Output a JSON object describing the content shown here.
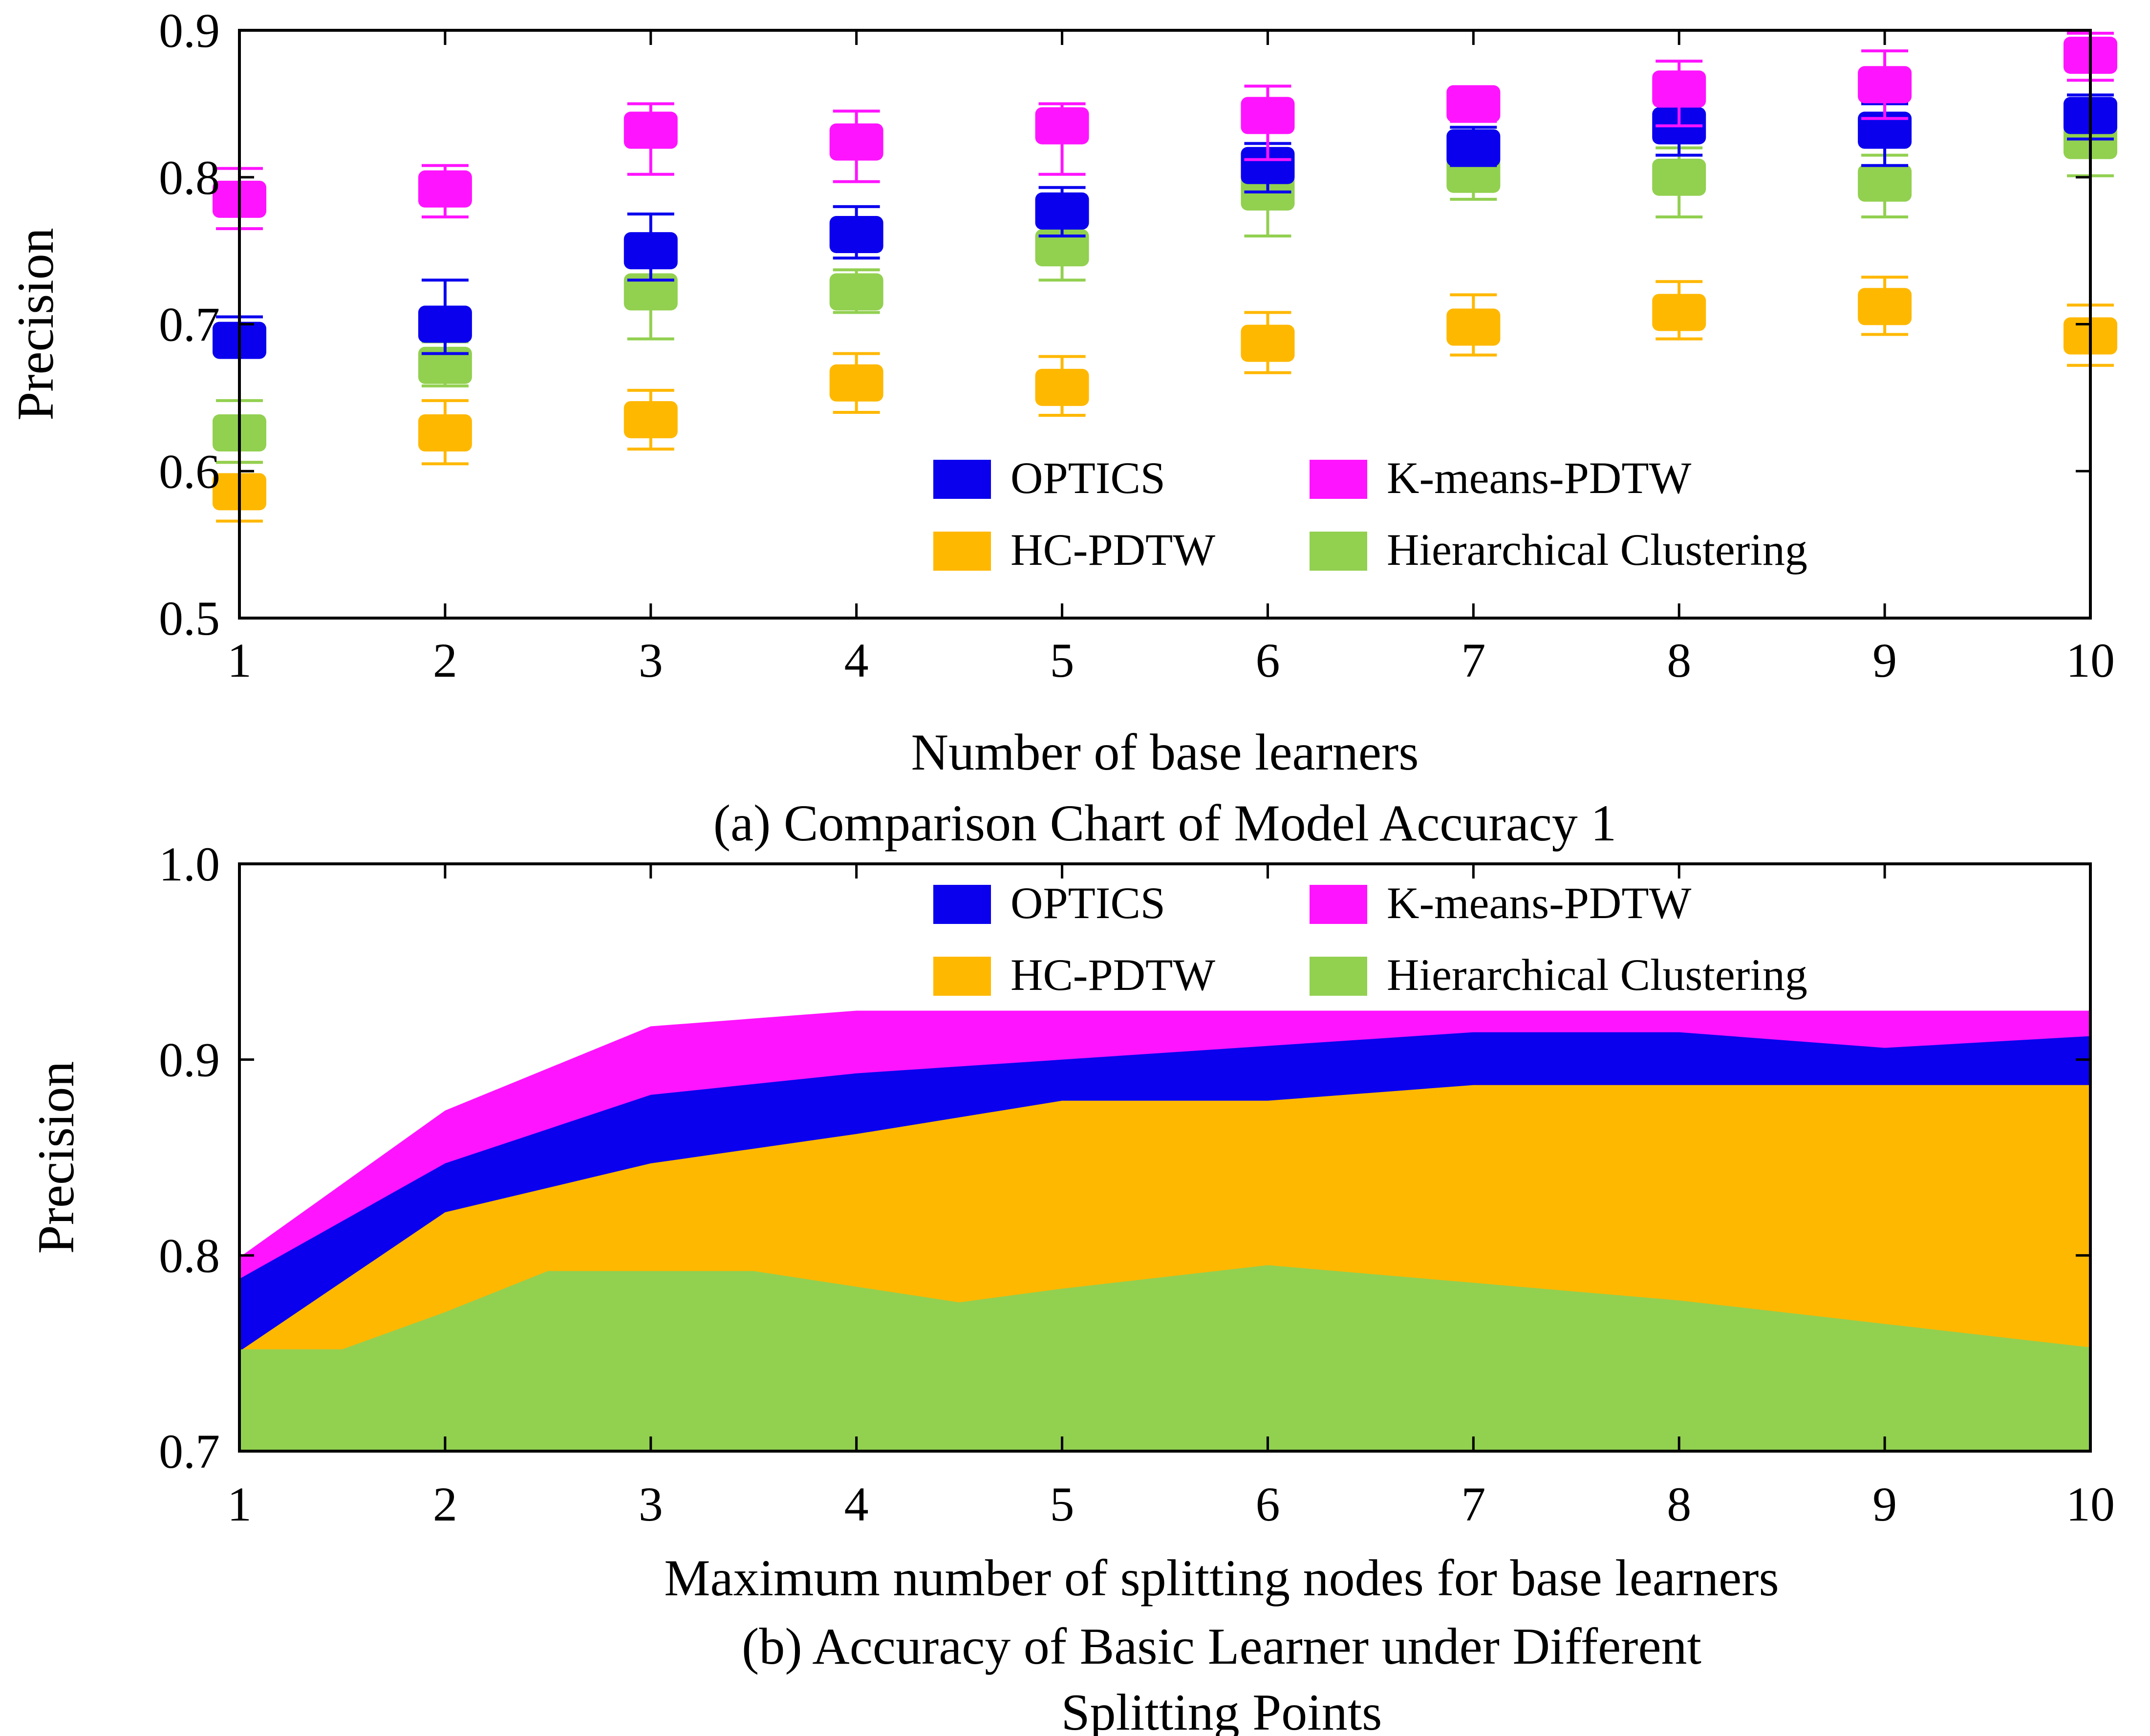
{
  "colors": {
    "OPTICS": "#0a00ee",
    "K-means-PDTW": "#ff14ff",
    "HC-PDTW": "#ffb800",
    "Hierarchical Clustering": "#92d050"
  },
  "chart_data": [
    {
      "type": "scatter",
      "caption": "(a) Comparison Chart of Model Accuracy 1",
      "xlabel": "Number of base learners",
      "ylabel": "Precision",
      "xlim": [
        1,
        10
      ],
      "ylim": [
        0.5,
        0.9
      ],
      "xticks": [
        "1",
        "2",
        "3",
        "4",
        "5",
        "6",
        "7",
        "8",
        "9",
        "10"
      ],
      "yticks": [
        "0.5",
        "0.6",
        "0.7",
        "0.8",
        "0.9"
      ],
      "legend": [
        "OPTICS",
        "K-means-PDTW",
        "HC-PDTW",
        "Hierarchical Clustering"
      ],
      "legend_placement": "bottom-right",
      "grid": false,
      "x": [
        1,
        2,
        3,
        4,
        5,
        6,
        7,
        8,
        9,
        10
      ],
      "series": [
        {
          "name": "OPTICS",
          "values": [
            0.689,
            0.7,
            0.75,
            0.761,
            0.777,
            0.808,
            0.82,
            0.835,
            0.832,
            0.842
          ],
          "err_low": [
            0.679,
            0.68,
            0.73,
            0.745,
            0.76,
            0.79,
            0.808,
            0.815,
            0.808,
            0.826
          ],
          "err_high": [
            0.705,
            0.73,
            0.775,
            0.78,
            0.793,
            0.823,
            0.834,
            0.85,
            0.85,
            0.856
          ]
        },
        {
          "name": "K-means-PDTW",
          "values": [
            0.785,
            0.792,
            0.832,
            0.824,
            0.835,
            0.842,
            0.85,
            0.86,
            0.863,
            0.883
          ],
          "err_low": [
            0.765,
            0.773,
            0.802,
            0.797,
            0.802,
            0.812,
            0.838,
            0.835,
            0.84,
            0.866
          ],
          "err_high": [
            0.806,
            0.808,
            0.85,
            0.845,
            0.85,
            0.862,
            0.855,
            0.879,
            0.886,
            0.898
          ]
        },
        {
          "name": "HC-PDTW",
          "values": [
            0.586,
            0.626,
            0.635,
            0.66,
            0.657,
            0.687,
            0.698,
            0.708,
            0.712,
            0.692
          ],
          "err_low": [
            0.566,
            0.605,
            0.615,
            0.64,
            0.638,
            0.667,
            0.679,
            0.69,
            0.693,
            0.672
          ],
          "err_high": [
            0.606,
            0.648,
            0.655,
            0.68,
            0.678,
            0.708,
            0.72,
            0.729,
            0.732,
            0.713
          ]
        },
        {
          "name": "Hierarchical Clustering",
          "values": [
            0.626,
            0.672,
            0.722,
            0.722,
            0.752,
            0.79,
            0.802,
            0.8,
            0.796,
            0.825
          ],
          "err_low": [
            0.606,
            0.658,
            0.69,
            0.708,
            0.73,
            0.76,
            0.785,
            0.773,
            0.773,
            0.801
          ],
          "err_high": [
            0.648,
            0.688,
            0.757,
            0.737,
            0.775,
            0.812,
            0.818,
            0.82,
            0.815,
            0.838
          ]
        }
      ]
    },
    {
      "type": "area",
      "caption": "(b) Accuracy of Basic Learner under Different Splitting Points",
      "caption_lines": [
        "(b) Accuracy of Basic Learner under Different",
        "Splitting Points"
      ],
      "xlabel": "Maximum number of splitting nodes for base learners",
      "ylabel": "Precision",
      "xlim": [
        1,
        10
      ],
      "ylim": [
        0.7,
        1.0
      ],
      "xticks": [
        "1",
        "2",
        "3",
        "4",
        "5",
        "6",
        "7",
        "8",
        "9",
        "10"
      ],
      "yticks": [
        "0.7",
        "0.8",
        "0.9",
        "1.0"
      ],
      "legend": [
        "OPTICS",
        "K-means-PDTW",
        "HC-PDTW",
        "Hierarchical Clustering"
      ],
      "legend_placement": "top-right",
      "grid": false,
      "draw_order": [
        "K-means-PDTW",
        "OPTICS",
        "HC-PDTW",
        "Hierarchical Clustering"
      ],
      "series": [
        {
          "name": "K-means-PDTW",
          "x": [
            1,
            2,
            3,
            4,
            5,
            6,
            7,
            8,
            9,
            10
          ],
          "values": [
            0.799,
            0.874,
            0.917,
            0.925,
            0.925,
            0.925,
            0.925,
            0.925,
            0.925,
            0.925
          ]
        },
        {
          "name": "OPTICS",
          "x": [
            1,
            2,
            3,
            4,
            5,
            6,
            7,
            8,
            9,
            10
          ],
          "values": [
            0.788,
            0.847,
            0.882,
            0.893,
            0.9,
            0.907,
            0.914,
            0.914,
            0.906,
            0.912
          ]
        },
        {
          "name": "HC-PDTW",
          "x": [
            1,
            2,
            3,
            4,
            5,
            6,
            7,
            8,
            9,
            10
          ],
          "values": [
            0.751,
            0.822,
            0.847,
            0.862,
            0.879,
            0.879,
            0.887,
            0.887,
            0.887,
            0.887
          ]
        },
        {
          "name": "Hierarchical Clustering",
          "x": [
            1,
            1.5,
            2,
            2.5,
            3,
            3.5,
            4,
            4.5,
            5,
            6,
            7,
            8,
            9,
            10
          ],
          "values": [
            0.752,
            0.752,
            0.771,
            0.792,
            0.792,
            0.792,
            0.784,
            0.776,
            0.783,
            0.795,
            0.786,
            0.777,
            0.765,
            0.753
          ]
        }
      ]
    }
  ]
}
